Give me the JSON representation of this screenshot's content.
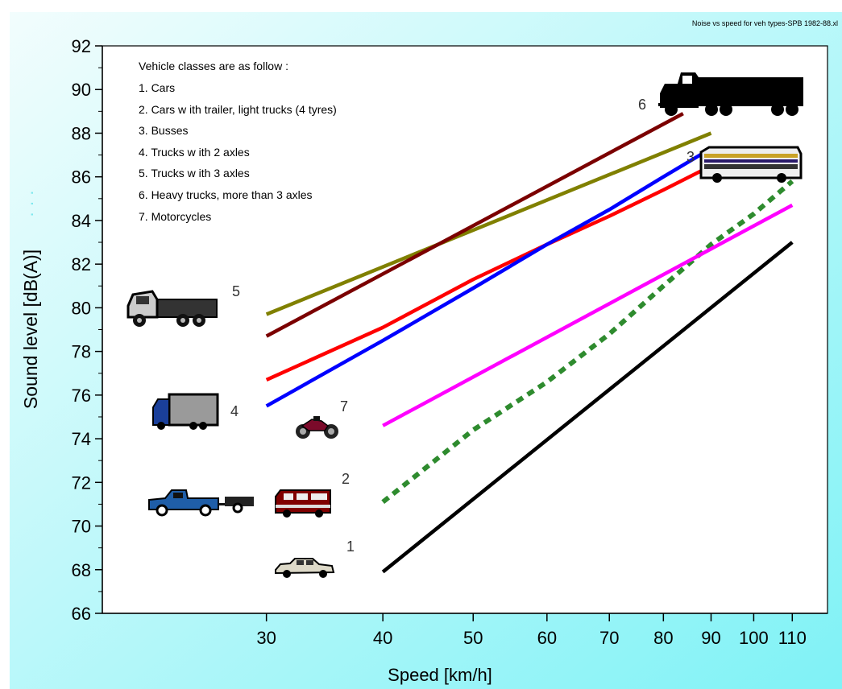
{
  "source_label": "Noise vs speed for veh types-SPB 1982-88.xl",
  "colors": {
    "background_gradient_start": "#f2fdfd",
    "background_gradient_end": "#7ff2f6",
    "plot_background": "#ffffff",
    "axis_dots": "#7fe7ee"
  },
  "chart_data": {
    "type": "line",
    "xlabel": "Speed [km/h]",
    "ylabel": "Sound level [dB(A)]",
    "x_scale": "log",
    "xlim": [
      20,
      120
    ],
    "ylim": [
      66,
      92
    ],
    "x_ticks": [
      30,
      40,
      50,
      60,
      70,
      80,
      90,
      100,
      110
    ],
    "y_ticks": [
      66,
      68,
      70,
      72,
      74,
      76,
      78,
      80,
      82,
      84,
      86,
      88,
      90,
      92
    ],
    "grid": false,
    "legend": {
      "position": "top-left",
      "title": "Vehicle classes are as follow :",
      "entries": [
        "1. Cars",
        "2. Cars w ith trailer, light trucks (4 tyres)",
        "3. Busses",
        "4. Trucks w ith 2 axles",
        "5. Trucks w ith 3 axles",
        "6. Heavy trucks, more than 3 axles",
        "7. Motorcycles"
      ]
    },
    "series": [
      {
        "name": "1",
        "color": "#000000",
        "dash": "solid",
        "x": [
          40,
          110
        ],
        "y": [
          67.9,
          83.0
        ]
      },
      {
        "name": "2",
        "color": "#2e8b2e",
        "dash": "dashed",
        "x": [
          40,
          50,
          60,
          70,
          80,
          90,
          100,
          110
        ],
        "y": [
          71.1,
          74.4,
          76.6,
          78.8,
          81.0,
          82.9,
          84.3,
          85.8
        ]
      },
      {
        "name": "3",
        "color": "#ff0000",
        "dash": "solid",
        "x": [
          30,
          40,
          50,
          60,
          70,
          80,
          90
        ],
        "y": [
          76.7,
          79.1,
          81.3,
          82.9,
          84.2,
          85.4,
          86.5
        ]
      },
      {
        "name": "4",
        "color": "#0000ff",
        "dash": "solid",
        "x": [
          30,
          40,
          50,
          60,
          70,
          80,
          90
        ],
        "y": [
          75.5,
          78.5,
          80.9,
          82.9,
          84.5,
          86.0,
          87.3
        ]
      },
      {
        "name": "5",
        "color": "#808000",
        "dash": "solid",
        "x": [
          30,
          90
        ],
        "y": [
          79.7,
          88.0
        ]
      },
      {
        "name": "6",
        "color": "#7b0000",
        "dash": "solid",
        "x": [
          30,
          84
        ],
        "y": [
          78.7,
          88.9
        ]
      },
      {
        "name": "7",
        "color": "#ff00ff",
        "dash": "solid",
        "x": [
          40,
          110
        ],
        "y": [
          74.6,
          84.7
        ]
      }
    ],
    "series_labels": [
      "1",
      "2",
      "3",
      "4",
      "5",
      "6",
      "7"
    ]
  },
  "icons": [
    "car-icon",
    "pickup-trailer-icon",
    "van-icon",
    "bus-icon",
    "box-truck-icon",
    "dump-truck-icon",
    "heavy-truck-icon",
    "motorcycle-icon"
  ]
}
